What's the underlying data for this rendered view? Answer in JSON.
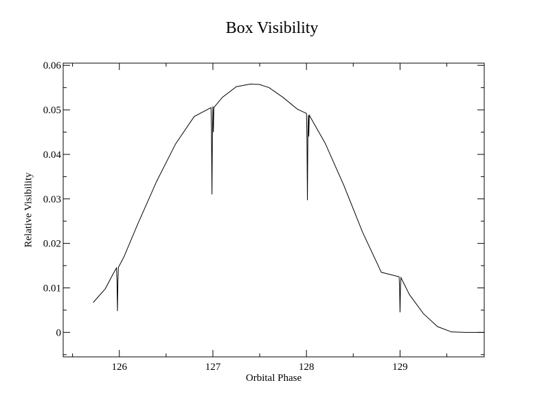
{
  "chart_data": {
    "type": "line",
    "title": "Box Visibility",
    "xlabel": "Orbital Phase",
    "ylabel": "Relative Visibility",
    "xlim": [
      125.4,
      129.9
    ],
    "ylim": [
      -0.0055,
      0.0605
    ],
    "xticks": [
      126,
      127,
      128,
      129
    ],
    "xtick_labels": [
      "126",
      "127",
      "128",
      "129"
    ],
    "yticks": [
      0,
      0.01,
      0.02,
      0.03,
      0.04,
      0.05,
      0.06
    ],
    "ytick_labels": [
      "0",
      "0.01",
      "0.02",
      "0.03",
      "0.04",
      "0.05",
      "0.06"
    ],
    "grid": false,
    "series": [
      {
        "x": [
          125.72,
          125.85,
          125.93,
          125.97,
          125.975,
          125.98,
          125.985,
          125.99,
          126.05,
          126.2,
          126.4,
          126.6,
          126.8,
          126.98,
          126.985,
          126.99,
          126.995,
          127.0,
          127.005,
          127.01,
          127.1,
          127.25,
          127.4,
          127.5,
          127.6,
          127.75,
          127.9,
          128.0,
          128.005,
          128.01,
          128.015,
          128.02,
          128.025,
          128.03,
          128.2,
          128.4,
          128.6,
          128.8,
          128.99,
          128.995,
          129.0,
          129.005,
          129.01,
          129.1,
          129.25,
          129.4,
          129.55,
          129.7,
          129.9
        ],
        "y": [
          0.0067,
          0.0098,
          0.013,
          0.0145,
          0.0115,
          0.0048,
          0.0115,
          0.0146,
          0.017,
          0.0245,
          0.034,
          0.0423,
          0.0485,
          0.0505,
          0.045,
          0.031,
          0.045,
          0.0508,
          0.045,
          0.0505,
          0.0528,
          0.0552,
          0.0558,
          0.0557,
          0.055,
          0.0528,
          0.0502,
          0.0492,
          0.044,
          0.0297,
          0.044,
          0.0488,
          0.044,
          0.0488,
          0.0425,
          0.033,
          0.0225,
          0.0135,
          0.0125,
          0.0105,
          0.0045,
          0.0105,
          0.0123,
          0.0085,
          0.0042,
          0.0013,
          0.0001,
          0.0,
          0.0
        ]
      }
    ]
  }
}
